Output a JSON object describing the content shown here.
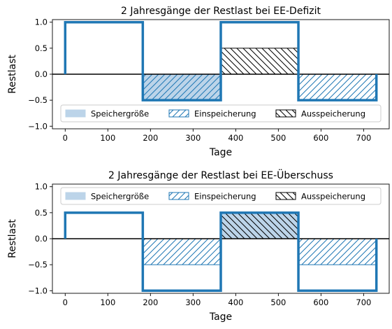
{
  "colors": {
    "line": "#1f77b4",
    "storage_fill": "#bcd4e9",
    "hatch_charge": "#1f77b4",
    "hatch_discharge": "#000000",
    "zero_line": "#000000"
  },
  "legend": {
    "storage": "Speichergröße",
    "charge": "Einspeicherung",
    "discharge": "Ausspeicherung"
  },
  "chart_data": [
    {
      "type": "line",
      "title": "2 Jahresgänge der Restlast bei EE-Defizit",
      "xlabel": "Tage",
      "ylabel": "Restlast",
      "xlim": [
        -30,
        760
      ],
      "ylim": [
        -1.05,
        1.05
      ],
      "xticks": [
        0,
        100,
        200,
        300,
        400,
        500,
        600,
        700
      ],
      "yticks": [
        -1.0,
        -0.5,
        0.0,
        0.5,
        1.0
      ],
      "ytick_labels": [
        "−1.0",
        "−0.5",
        "0.0",
        "0.5",
        "1.0"
      ],
      "legend_position": "lower-center",
      "series": [
        {
          "x": [
            0,
            0,
            182,
            182,
            365,
            365,
            547,
            547,
            730,
            730
          ],
          "y": [
            0,
            1,
            1,
            -0.5,
            -0.5,
            1,
            1,
            -0.5,
            -0.5,
            0
          ]
        }
      ],
      "regions": [
        {
          "kind": "storage",
          "x0": 182,
          "x1": 365,
          "y0": -0.5,
          "y1": 0
        },
        {
          "kind": "charge",
          "x0": 182,
          "x1": 365,
          "y0": -0.5,
          "y1": 0
        },
        {
          "kind": "discharge",
          "x0": 365,
          "x1": 547,
          "y0": 0,
          "y1": 0.5
        },
        {
          "kind": "charge",
          "x0": 547,
          "x1": 730,
          "y0": -0.5,
          "y1": 0
        }
      ]
    },
    {
      "type": "line",
      "title": "2 Jahresgänge der Restlast bei EE-Überschuss",
      "xlabel": "Tage",
      "ylabel": "Restlast",
      "xlim": [
        -30,
        760
      ],
      "ylim": [
        -1.05,
        1.05
      ],
      "xticks": [
        0,
        100,
        200,
        300,
        400,
        500,
        600,
        700
      ],
      "yticks": [
        -1.0,
        -0.5,
        0.0,
        0.5,
        1.0
      ],
      "ytick_labels": [
        "−1.0",
        "−0.5",
        "0.0",
        "0.5",
        "1.0"
      ],
      "legend_position": "upper-center",
      "series": [
        {
          "x": [
            0,
            0,
            182,
            182,
            365,
            365,
            547,
            547,
            730,
            730
          ],
          "y": [
            0,
            0.5,
            0.5,
            -1,
            -1,
            0.5,
            0.5,
            -1,
            -1,
            0
          ]
        }
      ],
      "regions": [
        {
          "kind": "charge",
          "x0": 182,
          "x1": 365,
          "y0": -0.5,
          "y1": 0
        },
        {
          "kind": "storage",
          "x0": 365,
          "x1": 547,
          "y0": 0,
          "y1": 0.5
        },
        {
          "kind": "discharge",
          "x0": 365,
          "x1": 547,
          "y0": 0,
          "y1": 0.5
        },
        {
          "kind": "charge",
          "x0": 547,
          "x1": 730,
          "y0": -0.5,
          "y1": 0
        }
      ]
    }
  ]
}
